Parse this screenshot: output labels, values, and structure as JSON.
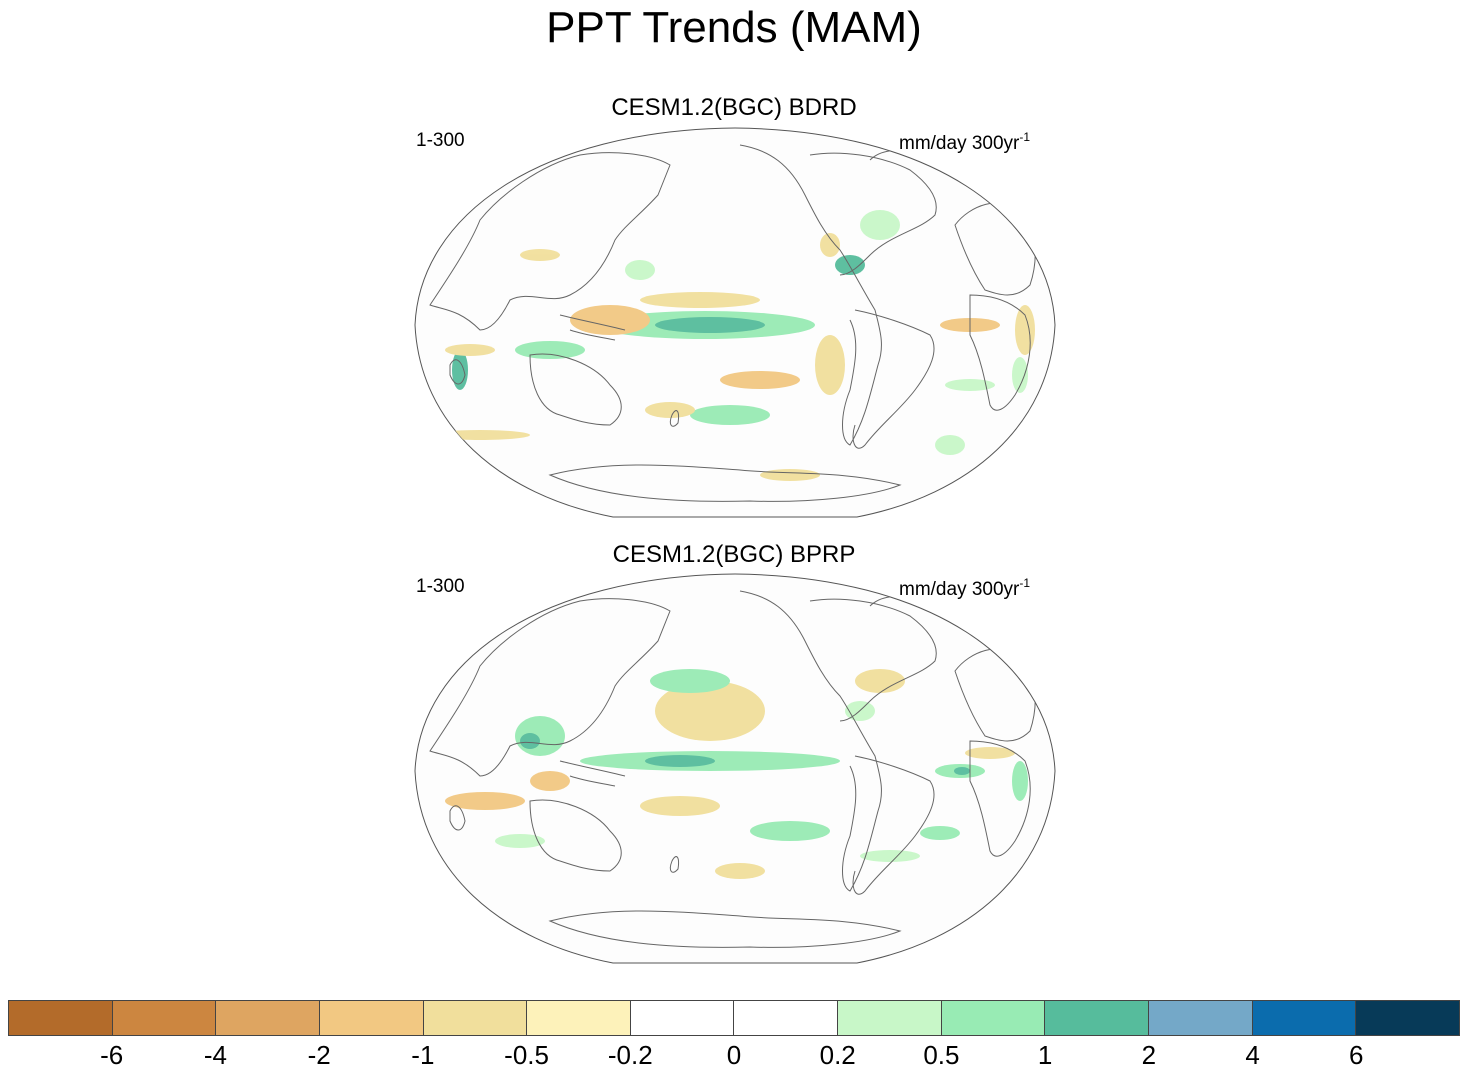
{
  "title": "PPT Trends (MAM)",
  "panels": [
    {
      "title": "CESM1.2(BGC) BDRD",
      "left_label": "1-300",
      "units": "mm/day 300yr",
      "units_exp": "-1"
    },
    {
      "title": "CESM1.2(BGC) BPRP",
      "left_label": "1-300",
      "units": "mm/day 300yr",
      "units_exp": "-1"
    }
  ],
  "colorbar": {
    "colors": [
      "#b36b2a",
      "#cc8640",
      "#dea561",
      "#f2c882",
      "#f1df9c",
      "#fdf2ba",
      "#ffffff",
      "#ffffff",
      "#c8f7c8",
      "#98ebb4",
      "#56bc9c",
      "#74a8c8",
      "#0b6cad",
      "#073a58"
    ],
    "labels": [
      "-6",
      "-4",
      "-2",
      "-1",
      "-0.5",
      "-0.2",
      "0",
      "0.2",
      "0.5",
      "1",
      "2",
      "4",
      "6"
    ]
  },
  "chart_data": {
    "type": "heatmap",
    "title": "PPT Trends (MAM)",
    "variable": "precipitation trend",
    "units": "mm/day 300yr-1",
    "period": "1-300",
    "levels": [
      -6,
      -4,
      -2,
      -1,
      -0.5,
      -0.2,
      0,
      0.2,
      0.5,
      1,
      2,
      4,
      6
    ],
    "panels": [
      "CESM1.2(BGC) BDRD",
      "CESM1.2(BGC) BPRP"
    ]
  }
}
